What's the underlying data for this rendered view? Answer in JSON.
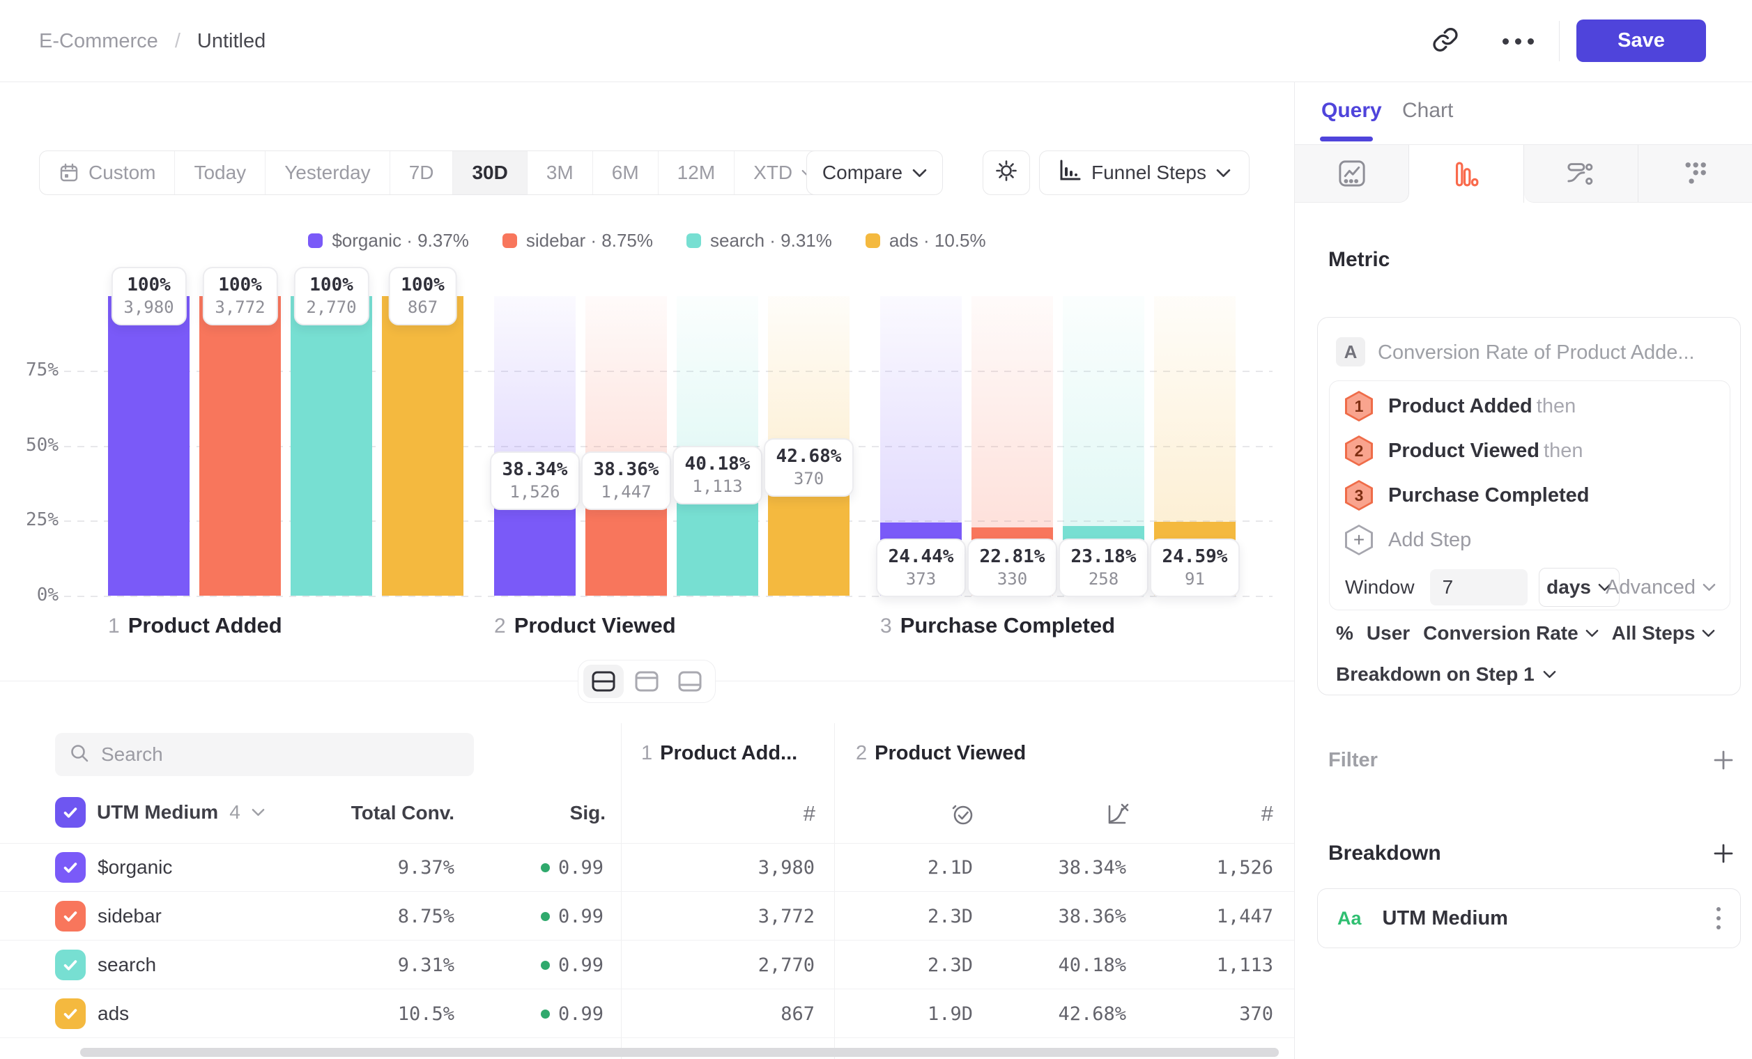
{
  "header": {
    "breadcrumb_root": "E-Commerce",
    "breadcrumb_sep": "/",
    "breadcrumb_current": "Untitled",
    "save_label": "Save"
  },
  "toolbar": {
    "ranges": [
      {
        "label": "Custom",
        "icon": "calendar"
      },
      {
        "label": "Today"
      },
      {
        "label": "Yesterday"
      },
      {
        "label": "7D"
      },
      {
        "label": "30D"
      },
      {
        "label": "3M"
      },
      {
        "label": "6M"
      },
      {
        "label": "12M"
      },
      {
        "label": "XTD",
        "chevron": true
      }
    ],
    "active_range": "30D",
    "compare_label": "Compare",
    "chart_type_label": "Funnel Steps"
  },
  "chart_data": {
    "type": "bar",
    "subtype": "funnel-steps",
    "title": "",
    "categories": [
      "Product Added",
      "Product Viewed",
      "Purchase Completed"
    ],
    "step_nums": [
      "1",
      "2",
      "3"
    ],
    "yticks": [
      {
        "label": "75%",
        "y": 75
      },
      {
        "label": "50%",
        "y": 50
      },
      {
        "label": "25%",
        "y": 25
      },
      {
        "label": "0%",
        "y": 0
      }
    ],
    "ylim": [
      0,
      100
    ],
    "grid": "dashed-horizontal",
    "legend_position": "top-center",
    "series": [
      {
        "name": "$organic",
        "overall": "9.37%",
        "color": "#7A5AF8",
        "values": [
          {
            "pct": 100,
            "pct_label": "100%",
            "count": "3,980"
          },
          {
            "pct": 38.34,
            "pct_label": "38.34%",
            "count": "1,526"
          },
          {
            "pct": 24.44,
            "pct_label": "24.44%",
            "count": "373"
          }
        ]
      },
      {
        "name": "sidebar",
        "overall": "8.75%",
        "color": "#F8765C",
        "values": [
          {
            "pct": 100,
            "pct_label": "100%",
            "count": "3,772"
          },
          {
            "pct": 38.36,
            "pct_label": "38.36%",
            "count": "1,447"
          },
          {
            "pct": 22.81,
            "pct_label": "22.81%",
            "count": "330"
          }
        ]
      },
      {
        "name": "search",
        "overall": "9.31%",
        "color": "#77DFD2",
        "values": [
          {
            "pct": 100,
            "pct_label": "100%",
            "count": "2,770"
          },
          {
            "pct": 40.18,
            "pct_label": "40.18%",
            "count": "1,113"
          },
          {
            "pct": 23.18,
            "pct_label": "23.18%",
            "count": "258"
          }
        ]
      },
      {
        "name": "ads",
        "overall": "10.5%",
        "color": "#F4B93F",
        "values": [
          {
            "pct": 100,
            "pct_label": "100%",
            "count": "867"
          },
          {
            "pct": 42.68,
            "pct_label": "42.68%",
            "count": "370"
          },
          {
            "pct": 24.59,
            "pct_label": "24.59%",
            "count": "91"
          }
        ]
      }
    ]
  },
  "table": {
    "search_placeholder": "Search",
    "group_label": "UTM Medium",
    "group_count": "4",
    "col_total": "Total Conv.",
    "col_sig": "Sig.",
    "step_cols": [
      {
        "num": "1",
        "label": "Product Add..."
      },
      {
        "num": "2",
        "label": "Product Viewed"
      }
    ],
    "sig_dot_color": "#2FA96C",
    "rows": [
      {
        "name": "$organic",
        "color": "#7A5AF8",
        "total": "9.37%",
        "sig": "0.99",
        "s1_count": "3,980",
        "s2_time": "2.1D",
        "s2_conv": "38.34%",
        "s2_count": "1,526"
      },
      {
        "name": "sidebar",
        "color": "#F8765C",
        "total": "8.75%",
        "sig": "0.99",
        "s1_count": "3,772",
        "s2_time": "2.3D",
        "s2_conv": "38.36%",
        "s2_count": "1,447"
      },
      {
        "name": "search",
        "color": "#77DFD2",
        "total": "9.31%",
        "sig": "0.99",
        "s1_count": "2,770",
        "s2_time": "2.3D",
        "s2_conv": "40.18%",
        "s2_count": "1,113"
      },
      {
        "name": "ads",
        "color": "#F4B93F",
        "total": "10.5%",
        "sig": "0.99",
        "s1_count": "867",
        "s2_time": "1.9D",
        "s2_conv": "42.68%",
        "s2_count": "370"
      }
    ]
  },
  "panel": {
    "tab_query": "Query",
    "tab_chart": "Chart",
    "metric_heading": "Metric",
    "metric_badge": "A",
    "metric_title": "Conversion Rate of Product Adde...",
    "steps": [
      {
        "num": "1",
        "label": "Product Added",
        "suffix": "then"
      },
      {
        "num": "2",
        "label": "Product Viewed",
        "suffix": "then"
      },
      {
        "num": "3",
        "label": "Purchase Completed",
        "suffix": ""
      }
    ],
    "add_step_label": "Add Step",
    "window_label": "Window",
    "window_value": "7",
    "window_unit": "days",
    "advanced_label": "Advanced",
    "measure_pct": "%",
    "measure_user": "User",
    "measure_conv": "Conversion Rate",
    "measure_steps": "All Steps",
    "breakdown_on_label": "Breakdown on Step 1",
    "filter_heading": "Filter",
    "breakdown_heading": "Breakdown",
    "breakdown_item_type": "Aa",
    "breakdown_item_label": "UTM Medium",
    "accent_color": "#4F44DB",
    "funnel_icon_color": "#F96A4C",
    "step_badge_fill": "#F9A48E",
    "step_badge_border": "#EF6C49",
    "step_badge_text": "#7E2E12"
  }
}
